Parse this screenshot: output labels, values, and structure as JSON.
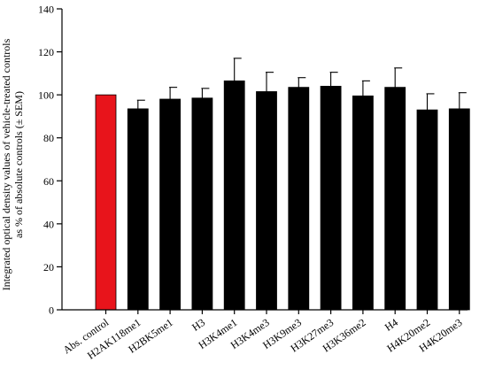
{
  "chart_data": {
    "type": "bar",
    "title": "",
    "xlabel": "",
    "ylabel_lines": [
      "Integrated optical density values of vehicle-treated controls",
      "as % of absolute controls (± SEM)"
    ],
    "ylim": [
      0,
      140
    ],
    "yticks": [
      "0",
      "20",
      "40",
      "60",
      "80",
      "100",
      "120",
      "140"
    ],
    "categories": [
      "Abs. control",
      "H2AK118me1",
      "H2BK5me1",
      "H3",
      "H3K4me1",
      "H3K4me3",
      "H3K9me3",
      "H3K27me3",
      "H3K36me2",
      "H4",
      "H4K20me2",
      "H4K20me3"
    ],
    "values": [
      100,
      93.5,
      98,
      98.5,
      106.5,
      101.5,
      103.5,
      104,
      99.5,
      103.5,
      93,
      93.5
    ],
    "sem": [
      0,
      4,
      5.5,
      4.5,
      10.5,
      9,
      4.5,
      6.5,
      7,
      9,
      7.5,
      7.5
    ],
    "colors": [
      "#e8141b",
      "#000000",
      "#000000",
      "#000000",
      "#000000",
      "#000000",
      "#000000",
      "#000000",
      "#000000",
      "#000000",
      "#000000",
      "#000000"
    ],
    "grid": false
  }
}
